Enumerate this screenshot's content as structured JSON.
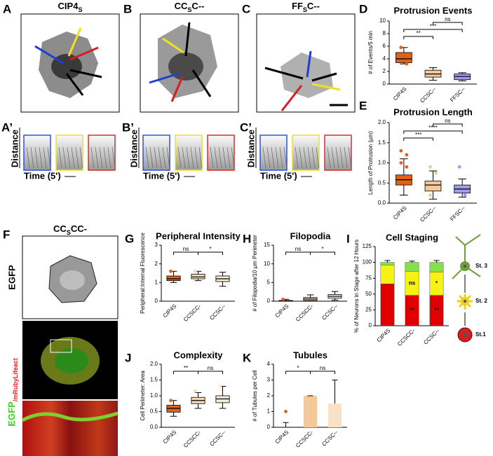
{
  "panels": {
    "labels": [
      "A",
      "B",
      "C",
      "D",
      "E",
      "F",
      "G",
      "H",
      "I",
      "J",
      "K"
    ],
    "kymo_labels": [
      "A’",
      "B’",
      "C’"
    ]
  },
  "images": [
    {
      "title_parts": [
        "CIP4",
        "S"
      ]
    },
    {
      "title_parts": [
        "CC",
        "S",
        "C--"
      ]
    },
    {
      "title_parts": [
        "FF",
        "S",
        "C--"
      ]
    }
  ],
  "kymograph": {
    "y_label": "Distance",
    "x_label": "Time (5')"
  },
  "panel_f": {
    "title_parts": [
      "CC",
      "S",
      "CC-"
    ],
    "channel_1": "EGFP",
    "channel_2_parts": [
      "EGFP",
      "/mRubyLifeact"
    ]
  },
  "chart_data": [
    {
      "type": "box",
      "title": "Protrusion Events",
      "y_label": "# of Events/5 min",
      "categories": [
        "CIP4S",
        "CCSC--",
        "FFSC--"
      ],
      "colors": [
        "#e0621a",
        "#f3c99a",
        "#9f9de8"
      ],
      "boxes": [
        {
          "min": 3.2,
          "q1": 3.4,
          "median": 4,
          "q3": 5,
          "max": 5.8,
          "points": [
            5.8,
            3.2
          ]
        },
        {
          "min": 0.6,
          "q1": 1.1,
          "median": 1.6,
          "q3": 2.2,
          "max": 2.6,
          "points": []
        },
        {
          "min": 0.5,
          "q1": 0.7,
          "median": 1.2,
          "q3": 1.6,
          "max": 1.8,
          "points": []
        }
      ],
      "ylim": [
        0,
        10
      ],
      "yticks": [
        0,
        2,
        4,
        6,
        8,
        10
      ],
      "significance": [
        "**",
        "***",
        "ns"
      ]
    },
    {
      "type": "box",
      "title": "Protrusion Length",
      "y_label": "Length of Protrusion (µm)",
      "categories": [
        "CIP4S",
        "CCSC--",
        "FFSC--"
      ],
      "colors": [
        "#e0621a",
        "#f3c99a",
        "#9f9de8"
      ],
      "boxes": [
        {
          "min": 0.2,
          "q1": 0.45,
          "median": 0.58,
          "q3": 0.7,
          "max": 1.1,
          "points": [
            1.3,
            1.2,
            1.0,
            0.9
          ]
        },
        {
          "min": 0.1,
          "q1": 0.3,
          "median": 0.45,
          "q3": 0.55,
          "max": 0.8,
          "points": [
            0.9,
            0.75,
            0.2
          ]
        },
        {
          "min": 0.15,
          "q1": 0.25,
          "median": 0.35,
          "q3": 0.45,
          "max": 0.6,
          "points": [
            0.9,
            0.2
          ]
        }
      ],
      "ylim": [
        0,
        2
      ],
      "yticks": [
        {
          "value": 0,
          "label": "0.0"
        },
        0.5,
        {
          "value": 1,
          "label": "1.0"
        },
        1.5,
        {
          "value": 2,
          "label": "2.0"
        }
      ],
      "significance": [
        "***",
        "****",
        "ns"
      ]
    },
    {
      "type": "box",
      "title": "Peripheral Intensity",
      "y_label": "Peripheral:Internal Fluorescence",
      "categories": [
        "CIP4S",
        "CCSCC-",
        "CCSC--"
      ],
      "colors": [
        "#e0621a",
        "#f3d9b5",
        "#f7ead7"
      ],
      "boxes": [
        {
          "min": 1.0,
          "q1": 1.1,
          "median": 1.2,
          "q3": 1.35,
          "max": 1.6,
          "points": [
            1.6
          ]
        },
        {
          "min": 1.1,
          "q1": 1.2,
          "median": 1.3,
          "q3": 1.45,
          "max": 1.6,
          "points": [
            1.6
          ]
        },
        {
          "min": 0.8,
          "q1": 1.05,
          "median": 1.2,
          "q3": 1.35,
          "max": 1.55,
          "points": []
        }
      ],
      "ylim": [
        0,
        3
      ],
      "yticks": [
        0,
        1,
        2,
        3
      ],
      "significance": [
        "ns",
        "*"
      ]
    },
    {
      "type": "box",
      "title": "Filopodia",
      "y_label": "# of Filopodia/10 µm Perimeter",
      "categories": [
        "CIP4S",
        "CCSCC-",
        "CCSC--"
      ],
      "colors": [
        "#e0621a",
        "#f3d9b5",
        "#f7ead7"
      ],
      "boxes": [
        {
          "min": 0,
          "q1": 0.05,
          "median": 0.1,
          "q3": 0.2,
          "max": 0.5,
          "points": [
            0.5
          ]
        },
        {
          "min": 0,
          "q1": 0.2,
          "median": 0.6,
          "q3": 1.0,
          "max": 1.7,
          "points": []
        },
        {
          "min": 0.3,
          "q1": 0.8,
          "median": 1.3,
          "q3": 1.8,
          "max": 2.6,
          "points": []
        }
      ],
      "ylim": [
        0,
        15
      ],
      "yticks": [
        0,
        5,
        10,
        15
      ],
      "significance": [
        "ns",
        "*"
      ]
    },
    {
      "type": "box",
      "title": "Complexity",
      "y_label": "Cell Perimeter: Area",
      "categories": [
        "CIP4S",
        "CCSCC-",
        "CCSC--"
      ],
      "colors": [
        "#e0621a",
        "#f3d9b5",
        "#f7ead7"
      ],
      "boxes": [
        {
          "min": 0.35,
          "q1": 0.48,
          "median": 0.6,
          "q3": 0.7,
          "max": 0.85,
          "points": [
            0.85
          ]
        },
        {
          "min": 0.6,
          "q1": 0.75,
          "median": 0.85,
          "q3": 0.95,
          "max": 1.1,
          "points": [
            1.15
          ]
        },
        {
          "min": 0.6,
          "q1": 0.78,
          "median": 0.9,
          "q3": 1.0,
          "max": 1.3,
          "points": [
            1.3
          ]
        }
      ],
      "ylim": [
        0,
        2
      ],
      "yticks": [
        {
          "value": 0,
          "label": "0.0"
        },
        0.5,
        {
          "value": 1,
          "label": "1.0"
        },
        1.5,
        {
          "value": 2,
          "label": "2.0"
        }
      ],
      "significance": [
        "**",
        "ns"
      ]
    },
    {
      "type": "bar",
      "title": "Tubules",
      "y_label": "# of Tubules per Cell",
      "categories": [
        "CIP4S",
        "CCSCC-",
        "CCSC--"
      ],
      "colors": [
        "#e0621a",
        "#f3c99a",
        "#f7e2c6"
      ],
      "values": [
        0,
        2,
        1.5
      ],
      "errors": [
        0.3,
        0,
        1.5
      ],
      "points": [
        [
          1
        ],
        [],
        []
      ],
      "ylim": [
        0,
        4
      ],
      "yticks": [
        0,
        1,
        2,
        3,
        4
      ],
      "significance": [
        "*",
        "ns"
      ]
    },
    {
      "type": "stacked_bar",
      "title": "Cell Staging",
      "y_label": "% of Neurons in Stage after 12 Hours",
      "categories": [
        "CIP4S",
        "CCSCC-",
        "CCSC--"
      ],
      "series": [
        {
          "name": "St.1",
          "color": "#e00000",
          "values": [
            66,
            48,
            48
          ],
          "errors": [
            5,
            3,
            5
          ],
          "annotations": [
            null,
            "**",
            "**"
          ]
        },
        {
          "name": "St. 2",
          "color": "#f5f214",
          "values": [
            30,
            38,
            37
          ],
          "errors": [
            3,
            3,
            3
          ],
          "annotations": [
            null,
            "ns",
            "*"
          ]
        },
        {
          "name": "St. 3",
          "color": "#86e04a",
          "values": [
            4,
            14,
            15
          ],
          "errors": [
            3,
            2,
            3
          ],
          "annotations": [
            null,
            null,
            null
          ]
        }
      ],
      "ylim": [
        0,
        125
      ],
      "yticks": [
        0,
        25,
        50,
        75,
        100,
        125
      ]
    }
  ]
}
